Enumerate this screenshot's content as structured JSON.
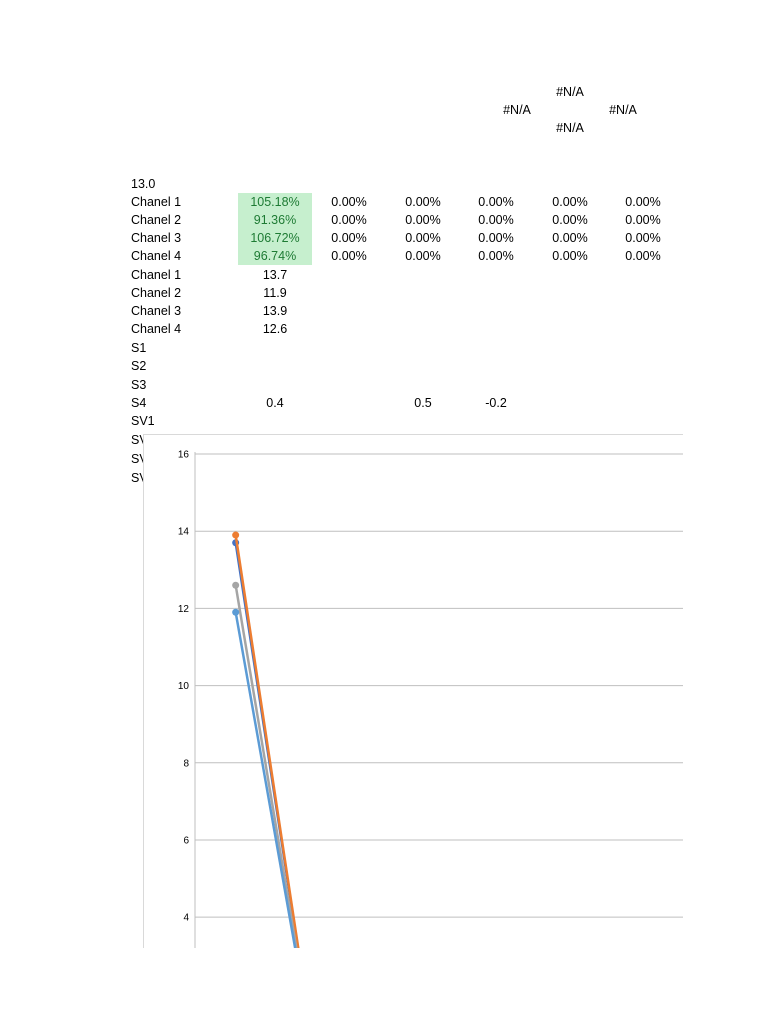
{
  "na_block": [
    "#N/A",
    "#N/A",
    "#N/A",
    "#N/A"
  ],
  "header_value": "13.0",
  "percent_rows": [
    {
      "label": "Chanel 1",
      "values": [
        "105.18%",
        "0.00%",
        "0.00%",
        "0.00%",
        "0.00%",
        "0.00%"
      ]
    },
    {
      "label": "Chanel 2",
      "values": [
        "91.36%",
        "0.00%",
        "0.00%",
        "0.00%",
        "0.00%",
        "0.00%"
      ]
    },
    {
      "label": "Chanel 3",
      "values": [
        "106.72%",
        "0.00%",
        "0.00%",
        "0.00%",
        "0.00%",
        "0.00%"
      ]
    },
    {
      "label": "Chanel 4",
      "values": [
        "96.74%",
        "0.00%",
        "0.00%",
        "0.00%",
        "0.00%",
        "0.00%"
      ]
    }
  ],
  "value_rows": [
    {
      "label": "Chanel 1",
      "value": "13.7"
    },
    {
      "label": "Chanel 2",
      "value": "11.9"
    },
    {
      "label": "Chanel 3",
      "value": "13.9"
    },
    {
      "label": "Chanel 4",
      "value": "12.6"
    }
  ],
  "s_rows": [
    {
      "label": "S1",
      "values": [
        "",
        "",
        "",
        ""
      ]
    },
    {
      "label": "S2",
      "values": [
        "",
        "",
        "",
        ""
      ]
    },
    {
      "label": "S3",
      "values": [
        "",
        "",
        "",
        ""
      ]
    },
    {
      "label": "S4",
      "values": [
        "0.4",
        "",
        "0.5",
        "-0.2"
      ]
    },
    {
      "label": "SV1",
      "values": [
        "",
        "",
        "",
        ""
      ]
    },
    {
      "label": "SV",
      "values": [
        "",
        "",
        "",
        ""
      ]
    },
    {
      "label": "SV",
      "values": [
        "",
        "",
        "",
        ""
      ]
    },
    {
      "label": "SV",
      "values": [
        "",
        "",
        "",
        ""
      ]
    }
  ],
  "colors": {
    "highlight_fill": "#c6efce",
    "highlight_text": "#1e7b34",
    "gridline": "#bfbfbf",
    "series": [
      "#4472c4",
      "#ed7d31",
      "#a5a5a5",
      "#5b9bd5"
    ]
  },
  "chart_data": {
    "type": "line",
    "y_ticks": [
      4,
      6,
      8,
      10,
      12,
      14,
      16
    ],
    "ylim": [
      3.2,
      16
    ],
    "xlim": [
      0.5,
      6.5
    ],
    "grid": true,
    "series": [
      {
        "x": [
          1,
          2
        ],
        "y": [
          13.7,
          0
        ]
      },
      {
        "x": [
          1,
          2
        ],
        "y": [
          13.9,
          0
        ]
      },
      {
        "x": [
          1,
          2
        ],
        "y": [
          12.6,
          0
        ]
      },
      {
        "x": [
          1,
          2
        ],
        "y": [
          11.9,
          0
        ]
      }
    ]
  }
}
